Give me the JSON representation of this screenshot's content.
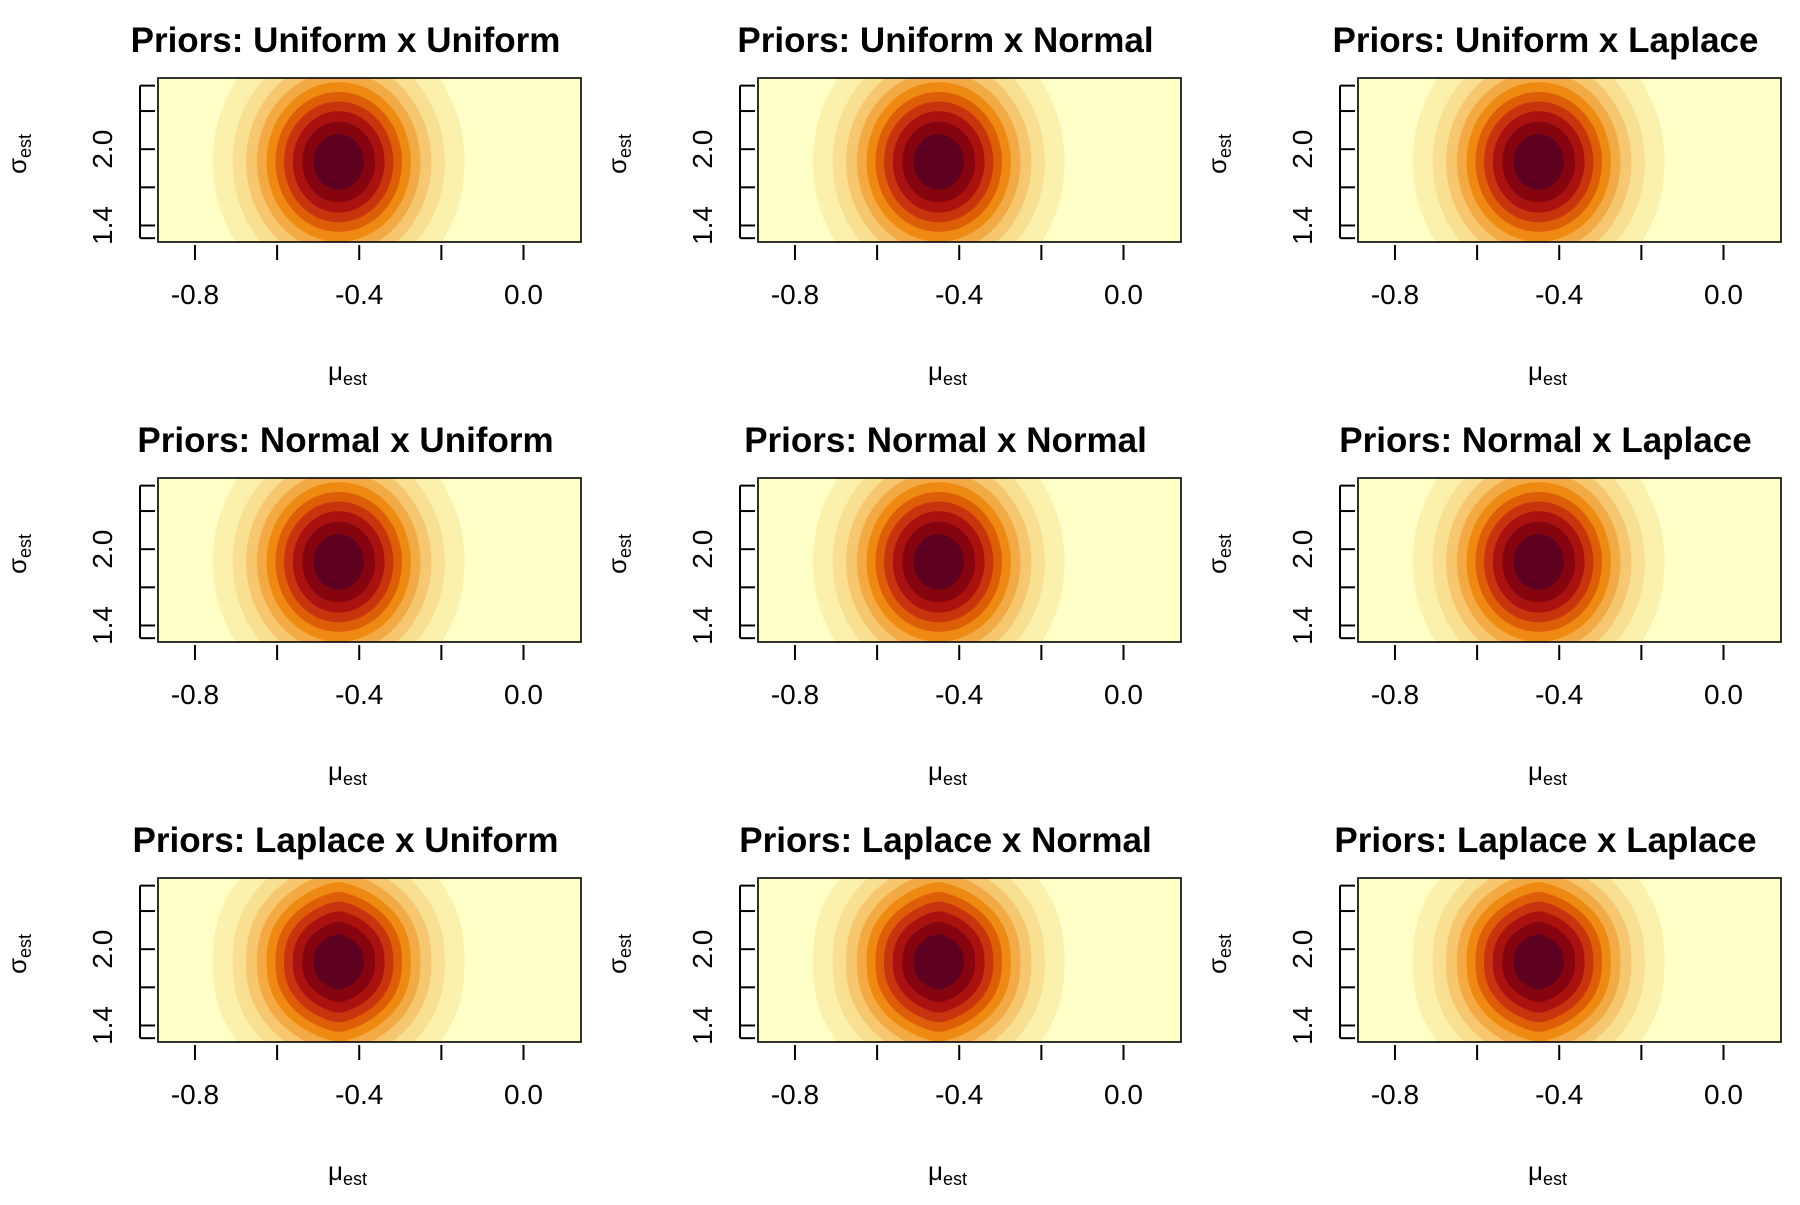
{
  "chart_data": [
    {
      "type": "heatmap",
      "title": "Priors: Uniform x Uniform",
      "xlabel": "μ",
      "xlabel_sub": "est",
      "ylabel": "σ",
      "ylabel_sub": "est",
      "xlim": [
        -0.89,
        0.14
      ],
      "ylim": [
        1.27,
        2.56
      ],
      "x_ticks": [
        -0.8,
        -0.6,
        -0.4,
        -0.2,
        0.0
      ],
      "x_tick_labels": [
        "-0.8",
        "",
        "-0.4",
        "",
        "0.0"
      ],
      "y_ticks": [
        1.3,
        1.4,
        1.7,
        2.0,
        2.3,
        2.5
      ],
      "y_tick_labels": [
        "",
        "1.4",
        "",
        "2.0",
        "",
        ""
      ],
      "peak": {
        "x": -0.45,
        "y": 1.9
      },
      "x_spread": 0.14,
      "y_spread": 0.5,
      "contour_shape": "smooth",
      "levels": 10
    },
    {
      "type": "heatmap",
      "title": "Priors: Uniform x Normal",
      "xlabel": "μ",
      "xlabel_sub": "est",
      "ylabel": "σ",
      "ylabel_sub": "est",
      "xlim": [
        -0.89,
        0.14
      ],
      "ylim": [
        1.27,
        2.56
      ],
      "x_ticks": [
        -0.8,
        -0.6,
        -0.4,
        -0.2,
        0.0
      ],
      "x_tick_labels": [
        "-0.8",
        "",
        "-0.4",
        "",
        "0.0"
      ],
      "y_ticks": [
        1.3,
        1.4,
        1.7,
        2.0,
        2.3,
        2.5
      ],
      "y_tick_labels": [
        "",
        "1.4",
        "",
        "2.0",
        "",
        ""
      ],
      "peak": {
        "x": -0.45,
        "y": 1.9
      },
      "x_spread": 0.14,
      "y_spread": 0.5,
      "contour_shape": "smooth",
      "levels": 10
    },
    {
      "type": "heatmap",
      "title": "Priors: Uniform x Laplace",
      "xlabel": "μ",
      "xlabel_sub": "est",
      "ylabel": "σ",
      "ylabel_sub": "est",
      "xlim": [
        -0.89,
        0.14
      ],
      "ylim": [
        1.27,
        2.56
      ],
      "x_ticks": [
        -0.8,
        -0.6,
        -0.4,
        -0.2,
        0.0
      ],
      "x_tick_labels": [
        "-0.8",
        "",
        "-0.4",
        "",
        "0.0"
      ],
      "y_ticks": [
        1.3,
        1.4,
        1.7,
        2.0,
        2.3,
        2.5
      ],
      "y_tick_labels": [
        "",
        "1.4",
        "",
        "2.0",
        "",
        ""
      ],
      "peak": {
        "x": -0.45,
        "y": 1.9
      },
      "x_spread": 0.14,
      "y_spread": 0.5,
      "contour_shape": "smooth",
      "levels": 10
    },
    {
      "type": "heatmap",
      "title": "Priors: Normal x Uniform",
      "xlabel": "μ",
      "xlabel_sub": "est",
      "ylabel": "σ",
      "ylabel_sub": "est",
      "xlim": [
        -0.89,
        0.14
      ],
      "ylim": [
        1.27,
        2.56
      ],
      "x_ticks": [
        -0.8,
        -0.6,
        -0.4,
        -0.2,
        0.0
      ],
      "x_tick_labels": [
        "-0.8",
        "",
        "-0.4",
        "",
        "0.0"
      ],
      "y_ticks": [
        1.3,
        1.4,
        1.7,
        2.0,
        2.3,
        2.5
      ],
      "y_tick_labels": [
        "",
        "1.4",
        "",
        "2.0",
        "",
        ""
      ],
      "peak": {
        "x": -0.45,
        "y": 1.9
      },
      "x_spread": 0.14,
      "y_spread": 0.5,
      "contour_shape": "smooth",
      "levels": 10
    },
    {
      "type": "heatmap",
      "title": "Priors: Normal x Normal",
      "xlabel": "μ",
      "xlabel_sub": "est",
      "ylabel": "σ",
      "ylabel_sub": "est",
      "xlim": [
        -0.89,
        0.14
      ],
      "ylim": [
        1.27,
        2.56
      ],
      "x_ticks": [
        -0.8,
        -0.6,
        -0.4,
        -0.2,
        0.0
      ],
      "x_tick_labels": [
        "-0.8",
        "",
        "-0.4",
        "",
        "0.0"
      ],
      "y_ticks": [
        1.3,
        1.4,
        1.7,
        2.0,
        2.3,
        2.5
      ],
      "y_tick_labels": [
        "",
        "1.4",
        "",
        "2.0",
        "",
        ""
      ],
      "peak": {
        "x": -0.45,
        "y": 1.9
      },
      "x_spread": 0.14,
      "y_spread": 0.5,
      "contour_shape": "smooth",
      "levels": 10
    },
    {
      "type": "heatmap",
      "title": "Priors: Normal x Laplace",
      "xlabel": "μ",
      "xlabel_sub": "est",
      "ylabel": "σ",
      "ylabel_sub": "est",
      "xlim": [
        -0.89,
        0.14
      ],
      "ylim": [
        1.27,
        2.56
      ],
      "x_ticks": [
        -0.8,
        -0.6,
        -0.4,
        -0.2,
        0.0
      ],
      "x_tick_labels": [
        "-0.8",
        "",
        "-0.4",
        "",
        "0.0"
      ],
      "y_ticks": [
        1.3,
        1.4,
        1.7,
        2.0,
        2.3,
        2.5
      ],
      "y_tick_labels": [
        "",
        "1.4",
        "",
        "2.0",
        "",
        ""
      ],
      "peak": {
        "x": -0.45,
        "y": 1.9
      },
      "x_spread": 0.14,
      "y_spread": 0.5,
      "contour_shape": "smooth",
      "levels": 10
    },
    {
      "type": "heatmap",
      "title": "Priors: Laplace x Uniform",
      "xlabel": "μ",
      "xlabel_sub": "est",
      "ylabel": "σ",
      "ylabel_sub": "est",
      "xlim": [
        -0.89,
        0.14
      ],
      "ylim": [
        1.27,
        2.56
      ],
      "x_ticks": [
        -0.8,
        -0.6,
        -0.4,
        -0.2,
        0.0
      ],
      "x_tick_labels": [
        "-0.8",
        "",
        "-0.4",
        "",
        "0.0"
      ],
      "y_ticks": [
        1.3,
        1.4,
        1.7,
        2.0,
        2.3,
        2.5
      ],
      "y_tick_labels": [
        "",
        "1.4",
        "",
        "2.0",
        "",
        ""
      ],
      "peak": {
        "x": -0.45,
        "y": 1.9
      },
      "x_spread": 0.14,
      "y_spread": 0.5,
      "contour_shape": "pointed",
      "levels": 10
    },
    {
      "type": "heatmap",
      "title": "Priors: Laplace x Normal",
      "xlabel": "μ",
      "xlabel_sub": "est",
      "ylabel": "σ",
      "ylabel_sub": "est",
      "xlim": [
        -0.89,
        0.14
      ],
      "ylim": [
        1.27,
        2.56
      ],
      "x_ticks": [
        -0.8,
        -0.6,
        -0.4,
        -0.2,
        0.0
      ],
      "x_tick_labels": [
        "-0.8",
        "",
        "-0.4",
        "",
        "0.0"
      ],
      "y_ticks": [
        1.3,
        1.4,
        1.7,
        2.0,
        2.3,
        2.5
      ],
      "y_tick_labels": [
        "",
        "1.4",
        "",
        "2.0",
        "",
        ""
      ],
      "peak": {
        "x": -0.45,
        "y": 1.9
      },
      "x_spread": 0.14,
      "y_spread": 0.5,
      "contour_shape": "pointed",
      "levels": 10
    },
    {
      "type": "heatmap",
      "title": "Priors: Laplace x Laplace",
      "xlabel": "μ",
      "xlabel_sub": "est",
      "ylabel": "σ",
      "ylabel_sub": "est",
      "xlim": [
        -0.89,
        0.14
      ],
      "ylim": [
        1.27,
        2.56
      ],
      "x_ticks": [
        -0.8,
        -0.6,
        -0.4,
        -0.2,
        0.0
      ],
      "x_tick_labels": [
        "-0.8",
        "",
        "-0.4",
        "",
        "0.0"
      ],
      "y_ticks": [
        1.3,
        1.4,
        1.7,
        2.0,
        2.3,
        2.5
      ],
      "y_tick_labels": [
        "",
        "1.4",
        "",
        "2.0",
        "",
        ""
      ],
      "peak": {
        "x": -0.45,
        "y": 1.9
      },
      "x_spread": 0.14,
      "y_spread": 0.5,
      "contour_shape": "pointed",
      "levels": 10
    }
  ],
  "palette": [
    "#FFFFC8",
    "#FBF1AC",
    "#F8DF92",
    "#F6C76E",
    "#F3A944",
    "#EE8A12",
    "#DE5E08",
    "#C8340E",
    "#A9120F",
    "#85040F",
    "#5E0120"
  ]
}
